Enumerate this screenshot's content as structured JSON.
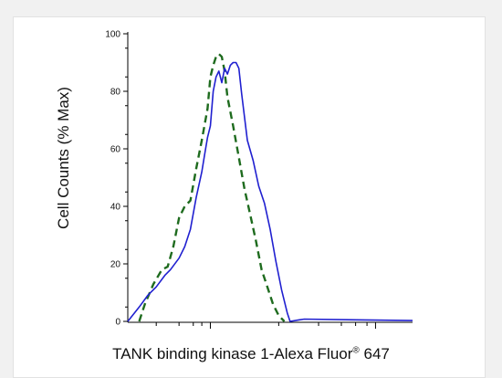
{
  "chart_data": {
    "type": "line",
    "title": "",
    "xlabel_text": "TANK binding kinase 1-Alexa Fluor",
    "xlabel_mark": "®",
    "xlabel_num": "647",
    "ylabel": "Cell Counts (% Max)",
    "ylim": [
      0,
      100
    ],
    "y_ticks": [
      0,
      20,
      40,
      60,
      80,
      100
    ],
    "xlim": [
      0,
      100
    ],
    "x_scale": "log-like, no tick labels",
    "grid": false,
    "series": [
      {
        "style": "dashed",
        "color": "#1e6b1e",
        "points": [
          [
            4,
            0
          ],
          [
            6,
            6
          ],
          [
            9,
            13
          ],
          [
            12,
            18
          ],
          [
            14,
            19
          ],
          [
            16,
            26
          ],
          [
            18,
            36
          ],
          [
            20,
            40
          ],
          [
            22,
            42
          ],
          [
            24,
            53
          ],
          [
            26,
            63
          ],
          [
            28,
            74
          ],
          [
            29,
            85
          ],
          [
            30,
            89
          ],
          [
            31,
            92
          ],
          [
            32,
            93
          ],
          [
            33,
            92
          ],
          [
            34,
            87
          ],
          [
            35,
            78
          ],
          [
            37,
            68
          ],
          [
            39,
            57
          ],
          [
            41,
            46
          ],
          [
            43,
            37
          ],
          [
            45,
            28
          ],
          [
            47,
            18
          ],
          [
            49,
            12
          ],
          [
            51,
            6
          ],
          [
            53,
            2
          ],
          [
            55,
            0
          ]
        ]
      },
      {
        "style": "solid",
        "color": "#2020d0",
        "points": [
          [
            0,
            0
          ],
          [
            4,
            5
          ],
          [
            7,
            9
          ],
          [
            10,
            12
          ],
          [
            13,
            16
          ],
          [
            15,
            18
          ],
          [
            18,
            22
          ],
          [
            20,
            26
          ],
          [
            22,
            32
          ],
          [
            24,
            43
          ],
          [
            26,
            52
          ],
          [
            27,
            58
          ],
          [
            28,
            64
          ],
          [
            29,
            68
          ],
          [
            30,
            80
          ],
          [
            31,
            85
          ],
          [
            32,
            87
          ],
          [
            33,
            83
          ],
          [
            34,
            88
          ],
          [
            35,
            86
          ],
          [
            36,
            89
          ],
          [
            37,
            90
          ],
          [
            38,
            90
          ],
          [
            39,
            88
          ],
          [
            40,
            79
          ],
          [
            42,
            63
          ],
          [
            44,
            56
          ],
          [
            46,
            47
          ],
          [
            48,
            41
          ],
          [
            50,
            32
          ],
          [
            52,
            21
          ],
          [
            54,
            11
          ],
          [
            56,
            3
          ],
          [
            57,
            0
          ],
          [
            60,
            0.5
          ],
          [
            62,
            0.8
          ],
          [
            100,
            0.3
          ]
        ]
      }
    ]
  }
}
